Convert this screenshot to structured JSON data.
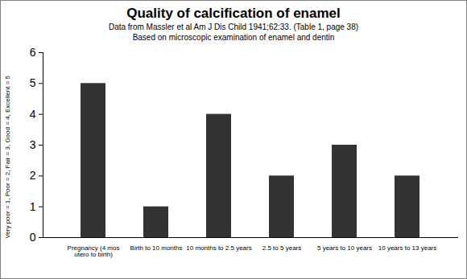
{
  "chart_data": {
    "type": "bar",
    "title": "Quality of calcification of enamel",
    "subtitle": [
      "Data from Massler et al Am J Dis Child 1941;62:33. (Table 1, page 38)",
      "Based on microscopic examination of enamel and dentin"
    ],
    "y_label": "Very poor = 1, Poor = 2, Fair = 3, Good = 4, Excellent = 5",
    "categories": [
      "Pregnancy (4 mos utero to birth)",
      "Birth to 10 months",
      "10 months to 2.5 years",
      "2.5 to 5 years",
      "5 years to 10 years",
      "10 years to 13 years"
    ],
    "values": [
      5,
      1,
      4,
      2,
      3,
      2
    ],
    "color": "#333333",
    "ylim": [
      0,
      6
    ],
    "yticks": [
      0,
      1,
      2,
      3,
      4,
      5,
      6
    ],
    "grid": false
  }
}
